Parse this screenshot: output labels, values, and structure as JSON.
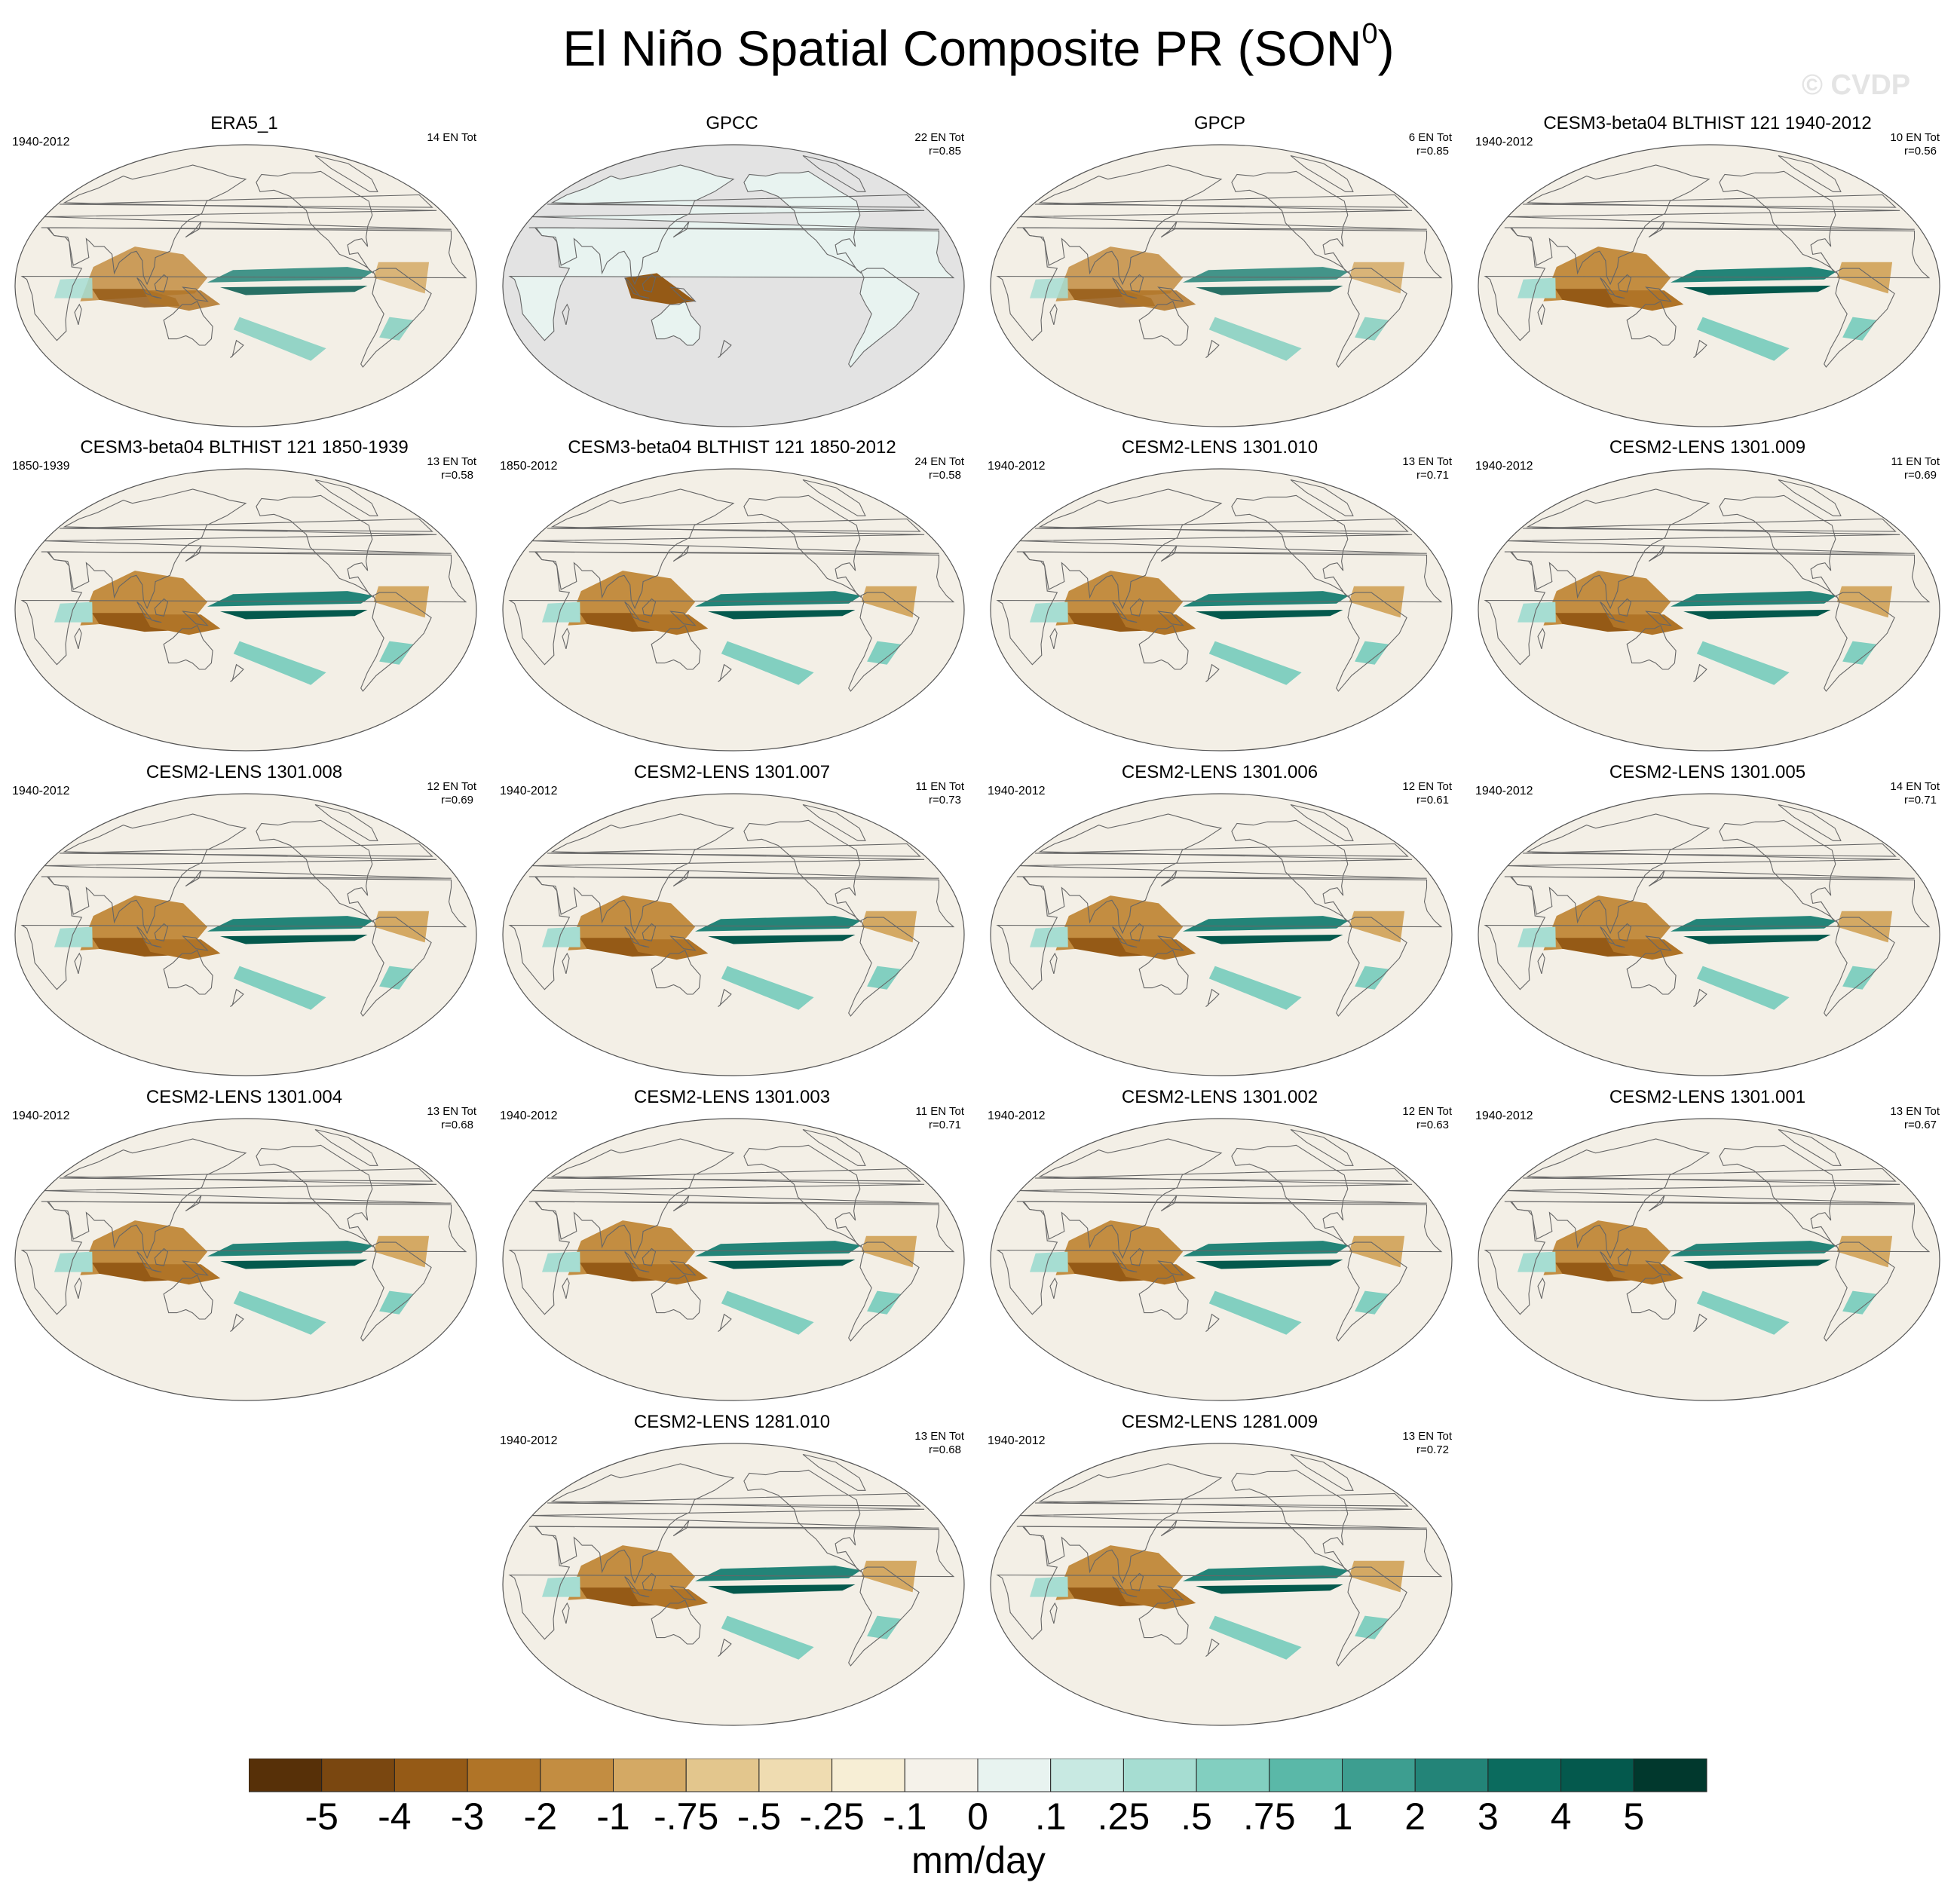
{
  "title": {
    "main": "El Niño Spatial Composite PR (SON",
    "superscript": "0",
    "close": ")"
  },
  "watermark": "© CVDP",
  "panels": [
    {
      "title": "ERA5_1",
      "years": "1940-2012",
      "count": "14 EN Tot",
      "r": "",
      "style": "obs"
    },
    {
      "title": "GPCC",
      "years": "",
      "count": "22 EN Tot",
      "r": "r=0.85",
      "style": "land"
    },
    {
      "title": "GPCP",
      "years": "",
      "count": "6 EN Tot",
      "r": "r=0.85",
      "style": "obs"
    },
    {
      "title": "CESM3-beta04 BLTHIST 121 1940-2012",
      "years": "1940-2012",
      "count": "10 EN Tot",
      "r": "r=0.56",
      "style": "model"
    },
    {
      "title": "CESM3-beta04 BLTHIST 121 1850-1939",
      "years": "1850-1939",
      "count": "13 EN Tot",
      "r": "r=0.58",
      "style": "model"
    },
    {
      "title": "CESM3-beta04 BLTHIST 121 1850-2012",
      "years": "1850-2012",
      "count": "24 EN Tot",
      "r": "r=0.58",
      "style": "model"
    },
    {
      "title": "CESM2-LENS 1301.010",
      "years": "1940-2012",
      "count": "13 EN Tot",
      "r": "r=0.71",
      "style": "model"
    },
    {
      "title": "CESM2-LENS 1301.009",
      "years": "1940-2012",
      "count": "11 EN Tot",
      "r": "r=0.69",
      "style": "model"
    },
    {
      "title": "CESM2-LENS 1301.008",
      "years": "1940-2012",
      "count": "12 EN Tot",
      "r": "r=0.69",
      "style": "model"
    },
    {
      "title": "CESM2-LENS 1301.007",
      "years": "1940-2012",
      "count": "11 EN Tot",
      "r": "r=0.73",
      "style": "model"
    },
    {
      "title": "CESM2-LENS 1301.006",
      "years": "1940-2012",
      "count": "12 EN Tot",
      "r": "r=0.61",
      "style": "model"
    },
    {
      "title": "CESM2-LENS 1301.005",
      "years": "1940-2012",
      "count": "14 EN Tot",
      "r": "r=0.71",
      "style": "model"
    },
    {
      "title": "CESM2-LENS 1301.004",
      "years": "1940-2012",
      "count": "13 EN Tot",
      "r": "r=0.68",
      "style": "model"
    },
    {
      "title": "CESM2-LENS 1301.003",
      "years": "1940-2012",
      "count": "11 EN Tot",
      "r": "r=0.71",
      "style": "model"
    },
    {
      "title": "CESM2-LENS 1301.002",
      "years": "1940-2012",
      "count": "12 EN Tot",
      "r": "r=0.63",
      "style": "model"
    },
    {
      "title": "CESM2-LENS 1301.001",
      "years": "1940-2012",
      "count": "13 EN Tot",
      "r": "r=0.67",
      "style": "model"
    },
    {
      "title": "CESM2-LENS 1281.010",
      "years": "1940-2012",
      "count": "13 EN Tot",
      "r": "r=0.68",
      "style": "model"
    },
    {
      "title": "CESM2-LENS 1281.009",
      "years": "1940-2012",
      "count": "13 EN Tot",
      "r": "r=0.72",
      "style": "model"
    }
  ],
  "colorbar": {
    "colors": [
      "#573008",
      "#7a4710",
      "#955a16",
      "#b07427",
      "#c38d41",
      "#d4a964",
      "#e3c68d",
      "#efdcb1",
      "#f7eed5",
      "#f5f2ea",
      "#e8f3f0",
      "#c8e9e2",
      "#a6ddd2",
      "#82cfc0",
      "#5ab8a8",
      "#3d9e90",
      "#238478",
      "#0b6b5e",
      "#04594d",
      "#01382d"
    ],
    "ticks": [
      "-5",
      "-4",
      "-3",
      "-2",
      "-1",
      "-.75",
      "-.5",
      "-.25",
      "-.1",
      "0",
      ".1",
      ".25",
      ".5",
      ".75",
      "1",
      "2",
      "3",
      "4",
      "5"
    ],
    "label": "mm/day"
  }
}
